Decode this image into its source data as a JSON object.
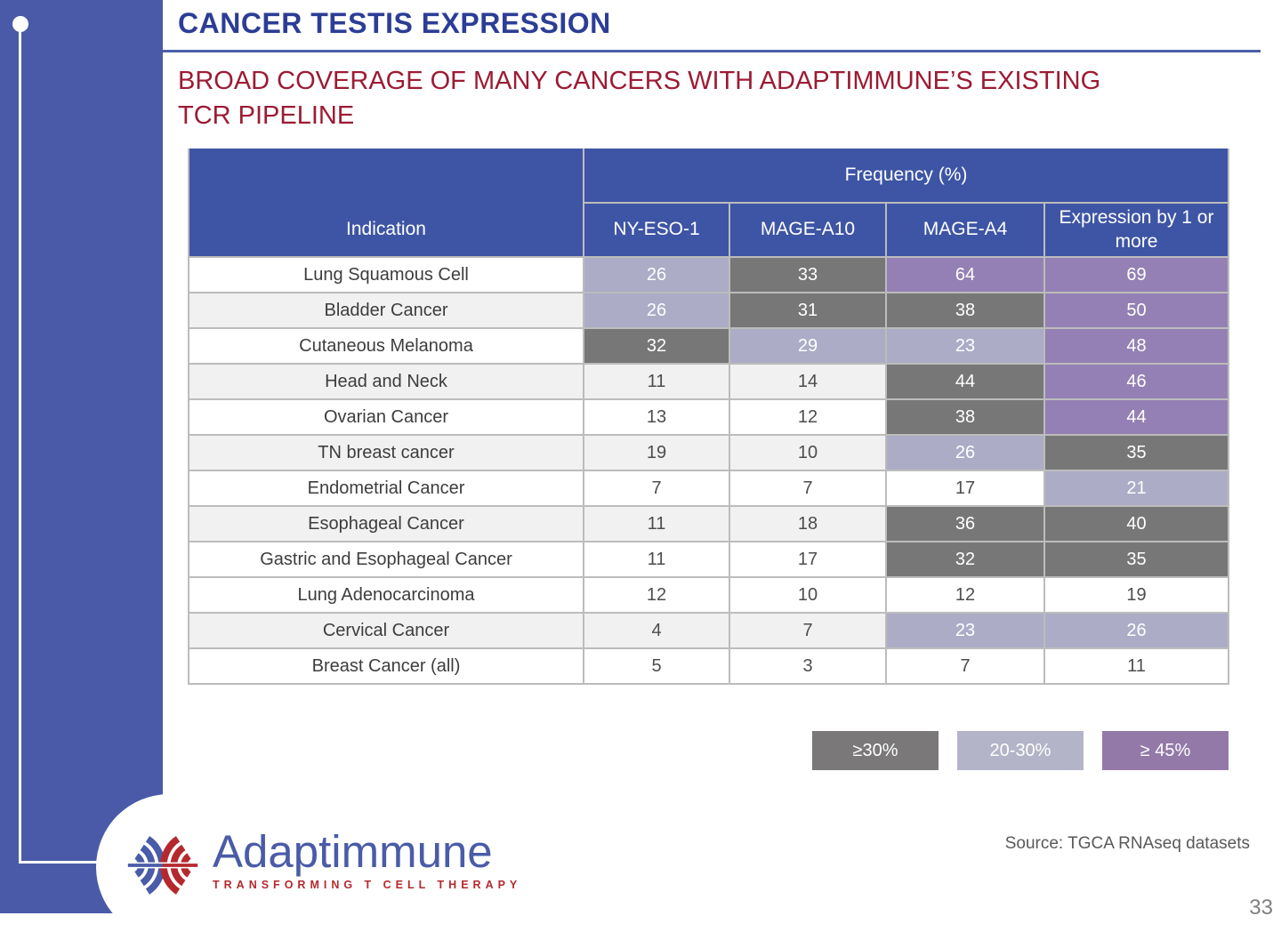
{
  "slide": {
    "title": "CANCER TESTIS EXPRESSION",
    "subtitle_line1": "BROAD COVERAGE OF MANY CANCERS WITH ADAPTIMMUNE’S EXISTING",
    "subtitle_line2": "TCR PIPELINE",
    "source": "Source: TGCA RNAseq datasets",
    "page_number": "33"
  },
  "logo": {
    "name": "Adaptimmune",
    "tagline": "TRANSFORMING T CELL THERAPY"
  },
  "colors": {
    "panel_blue": "#4A5AA8",
    "header_blue": "#3E55A5",
    "title_blue": "#2C3D96",
    "subtitle_red": "#9C1B33",
    "cell_dark_gray": "#777777",
    "cell_light_purple": "#ACACC7",
    "cell_purple": "#9480B4",
    "logo_blue": "#4A5BA8",
    "logo_red": "#B5292E"
  },
  "table": {
    "group_header": "Frequency (%)",
    "columns": [
      "Indication",
      "NY-ESO-1",
      "MAGE-A10",
      "MAGE-A4",
      "Expression by 1 or more"
    ],
    "legend": [
      {
        "label": "≥30%",
        "color_key": "dark"
      },
      {
        "label": "20-30%",
        "color_key": "light"
      },
      {
        "label": "≥ 45%",
        "color_key": "purple"
      }
    ],
    "rows": [
      {
        "indication": "Lung Squamous Cell",
        "striped": false,
        "cells": [
          {
            "v": "26",
            "c": "light"
          },
          {
            "v": "33",
            "c": "dark"
          },
          {
            "v": "64",
            "c": "purple"
          },
          {
            "v": "69",
            "c": "purple"
          }
        ]
      },
      {
        "indication": "Bladder Cancer",
        "striped": true,
        "cells": [
          {
            "v": "26",
            "c": "light"
          },
          {
            "v": "31",
            "c": "dark"
          },
          {
            "v": "38",
            "c": "dark"
          },
          {
            "v": "50",
            "c": "purple"
          }
        ]
      },
      {
        "indication": "Cutaneous Melanoma",
        "striped": false,
        "cells": [
          {
            "v": "32",
            "c": "dark"
          },
          {
            "v": "29",
            "c": "light"
          },
          {
            "v": "23",
            "c": "light"
          },
          {
            "v": "48",
            "c": "purple"
          }
        ]
      },
      {
        "indication": "Head and Neck",
        "striped": true,
        "cells": [
          {
            "v": "11",
            "c": "none"
          },
          {
            "v": "14",
            "c": "none"
          },
          {
            "v": "44",
            "c": "dark"
          },
          {
            "v": "46",
            "c": "purple"
          }
        ]
      },
      {
        "indication": "Ovarian Cancer",
        "striped": false,
        "cells": [
          {
            "v": "13",
            "c": "none"
          },
          {
            "v": "12",
            "c": "none"
          },
          {
            "v": "38",
            "c": "dark"
          },
          {
            "v": "44",
            "c": "purple"
          }
        ]
      },
      {
        "indication": "TN breast cancer",
        "striped": true,
        "cells": [
          {
            "v": "19",
            "c": "none"
          },
          {
            "v": "10",
            "c": "none"
          },
          {
            "v": "26",
            "c": "light"
          },
          {
            "v": "35",
            "c": "dark"
          }
        ]
      },
      {
        "indication": "Endometrial Cancer",
        "striped": false,
        "cells": [
          {
            "v": "7",
            "c": "none"
          },
          {
            "v": "7",
            "c": "none"
          },
          {
            "v": "17",
            "c": "none"
          },
          {
            "v": "21",
            "c": "light"
          }
        ]
      },
      {
        "indication": "Esophageal Cancer",
        "striped": true,
        "cells": [
          {
            "v": "11",
            "c": "none"
          },
          {
            "v": "18",
            "c": "none"
          },
          {
            "v": "36",
            "c": "dark"
          },
          {
            "v": "40",
            "c": "dark"
          }
        ]
      },
      {
        "indication": "Gastric and Esophageal Cancer",
        "striped": false,
        "cells": [
          {
            "v": "11",
            "c": "none"
          },
          {
            "v": "17",
            "c": "none"
          },
          {
            "v": "32",
            "c": "dark"
          },
          {
            "v": "35",
            "c": "dark"
          }
        ]
      },
      {
        "indication": "Lung Adenocarcinoma",
        "striped": false,
        "cells": [
          {
            "v": "12",
            "c": "none"
          },
          {
            "v": "10",
            "c": "none"
          },
          {
            "v": "12",
            "c": "none"
          },
          {
            "v": "19",
            "c": "none"
          }
        ]
      },
      {
        "indication": "Cervical Cancer",
        "striped": true,
        "cells": [
          {
            "v": "4",
            "c": "none"
          },
          {
            "v": "7",
            "c": "none"
          },
          {
            "v": "23",
            "c": "light"
          },
          {
            "v": "26",
            "c": "light"
          }
        ]
      },
      {
        "indication": "Breast Cancer (all)",
        "striped": false,
        "cells": [
          {
            "v": "5",
            "c": "none"
          },
          {
            "v": "3",
            "c": "none"
          },
          {
            "v": "7",
            "c": "none"
          },
          {
            "v": "11",
            "c": "none"
          }
        ]
      }
    ]
  }
}
